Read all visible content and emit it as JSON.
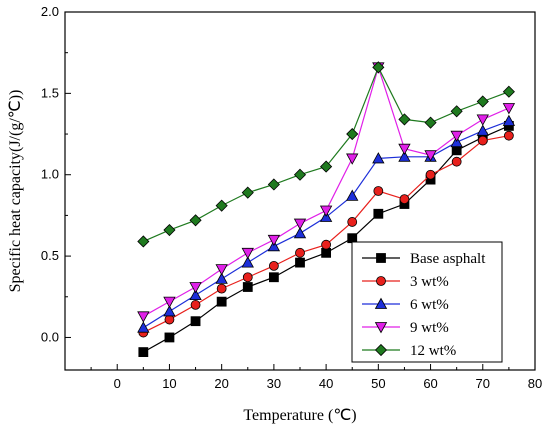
{
  "chart_data": {
    "type": "line",
    "title": "",
    "xlabel": "Temperature (℃)",
    "ylabel": "Specific heat capacity(J/(g/℃))",
    "xlim": [
      -10,
      80
    ],
    "ylim": [
      -0.2,
      2.0
    ],
    "xticks": [
      "0",
      "10",
      "20",
      "30",
      "40",
      "50",
      "60",
      "70",
      "80"
    ],
    "yticks": [
      "0.0",
      "0.5",
      "1.0",
      "1.5",
      "2.0"
    ],
    "x": [
      5,
      10,
      15,
      20,
      25,
      30,
      35,
      40,
      45,
      50,
      55,
      60,
      65,
      70,
      75
    ],
    "grid": false,
    "legend_position": "bottom-right",
    "series": [
      {
        "name": "Base asphalt",
        "marker": "square",
        "color": "#000000",
        "values": [
          -0.09,
          0.0,
          0.1,
          0.22,
          0.31,
          0.37,
          0.46,
          0.52,
          0.61,
          0.76,
          0.82,
          0.97,
          1.15,
          1.23,
          1.3
        ]
      },
      {
        "name": "3 wt%",
        "marker": "circle",
        "color": "#e8201c",
        "values": [
          0.03,
          0.11,
          0.2,
          0.3,
          0.37,
          0.44,
          0.52,
          0.57,
          0.71,
          0.9,
          0.85,
          1.0,
          1.08,
          1.21,
          1.24
        ]
      },
      {
        "name": "6 wt%",
        "marker": "triangle-up",
        "color": "#1d2fd9",
        "values": [
          0.06,
          0.16,
          0.26,
          0.36,
          0.46,
          0.56,
          0.64,
          0.74,
          0.87,
          1.1,
          1.11,
          1.11,
          1.2,
          1.27,
          1.33
        ]
      },
      {
        "name": "9 wt%",
        "marker": "triangle-down",
        "color": "#e020e8",
        "values": [
          0.13,
          0.22,
          0.31,
          0.42,
          0.52,
          0.6,
          0.7,
          0.78,
          1.1,
          1.66,
          1.16,
          1.12,
          1.24,
          1.34,
          1.41
        ]
      },
      {
        "name": "12 wt%",
        "marker": "diamond",
        "color": "#1f7a1f",
        "values": [
          0.59,
          0.66,
          0.72,
          0.81,
          0.89,
          0.94,
          1.0,
          1.05,
          1.25,
          1.66,
          1.34,
          1.32,
          1.39,
          1.45,
          1.51
        ]
      }
    ]
  }
}
